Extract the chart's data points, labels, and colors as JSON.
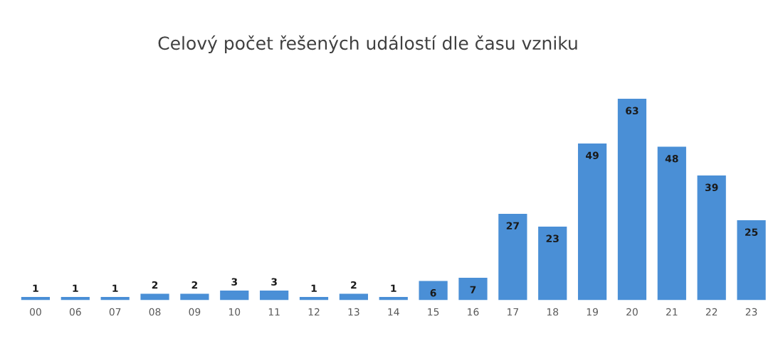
{
  "chart_data": {
    "type": "bar",
    "title": "Celový počet řešených událostí dle času vzniku",
    "categories": [
      "00",
      "06",
      "07",
      "08",
      "09",
      "10",
      "11",
      "12",
      "13",
      "14",
      "15",
      "16",
      "17",
      "18",
      "19",
      "20",
      "21",
      "22",
      "23"
    ],
    "values": [
      1,
      1,
      1,
      2,
      2,
      3,
      3,
      1,
      2,
      1,
      6,
      7,
      27,
      23,
      49,
      63,
      48,
      39,
      25
    ],
    "color": "#4a8fd6",
    "data_labels": true,
    "grid": false,
    "legend": false
  }
}
